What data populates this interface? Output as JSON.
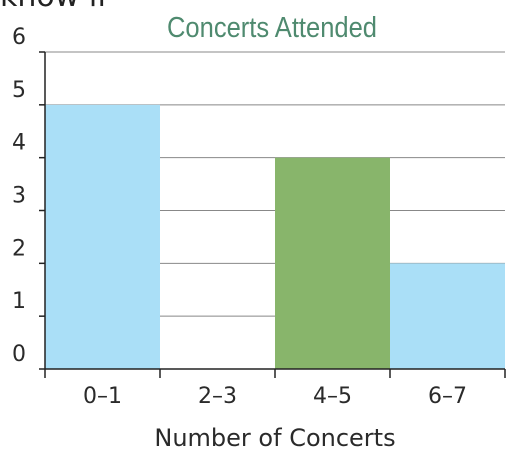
{
  "partial_text": "know if",
  "chart_data": {
    "type": "bar",
    "title": "Concerts Attended",
    "xlabel": "Number of Concerts",
    "ylabel": "",
    "categories": [
      "0–1",
      "2–3",
      "4–5",
      "6–7"
    ],
    "values": [
      5,
      0,
      4,
      2
    ],
    "ylim": [
      0,
      6
    ],
    "yticks": [
      "0",
      "1",
      "2",
      "3",
      "4",
      "5",
      "6"
    ],
    "grid": true,
    "legend": "none",
    "bar_colors": [
      "#aadff7",
      "#aadff7",
      "#88b56b",
      "#aadff7"
    ],
    "title_color": "#4f8a6f",
    "grid_color": "#888888"
  }
}
